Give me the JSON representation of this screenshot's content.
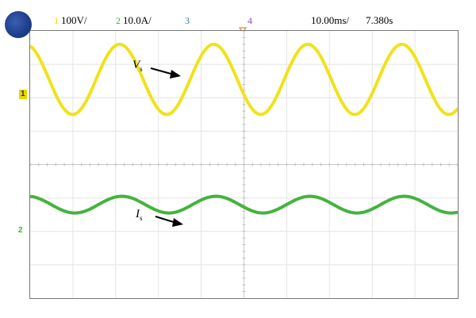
{
  "channels": [
    {
      "number": "1",
      "scale": "100V/",
      "color": "#e6d800"
    },
    {
      "number": "2",
      "scale": "10.0A/",
      "color": "#3db33d"
    },
    {
      "number": "3",
      "scale": "",
      "color": "#2a7fc4"
    },
    {
      "number": "4",
      "scale": "",
      "color": "#9b3fb6"
    }
  ],
  "timebase": "10.00ms/",
  "trigger_position": "7.380s",
  "signals": {
    "voltage": {
      "symbol": "V",
      "subscript": "s",
      "color": "#f1e21a"
    },
    "current": {
      "symbol": "I",
      "subscript": "s",
      "color": "#44b33e"
    }
  },
  "markers": {
    "ch1": "1",
    "ch2": "2"
  },
  "icons": {
    "logo": "scope-logo",
    "trigger": "trigger-marker-icon"
  },
  "chart_data": {
    "type": "line",
    "x_unit": "div",
    "xlim": [
      0,
      10
    ],
    "grid": true,
    "divisions_x": 10,
    "divisions_y": 8,
    "series": [
      {
        "name": "Vs",
        "amplitude_div": 1.05,
        "period_div": 2.2,
        "offset_div": 2.55
      },
      {
        "name": "Is",
        "amplitude_div": 0.25,
        "period_div": 2.2,
        "offset_div": -1.2
      }
    ]
  }
}
